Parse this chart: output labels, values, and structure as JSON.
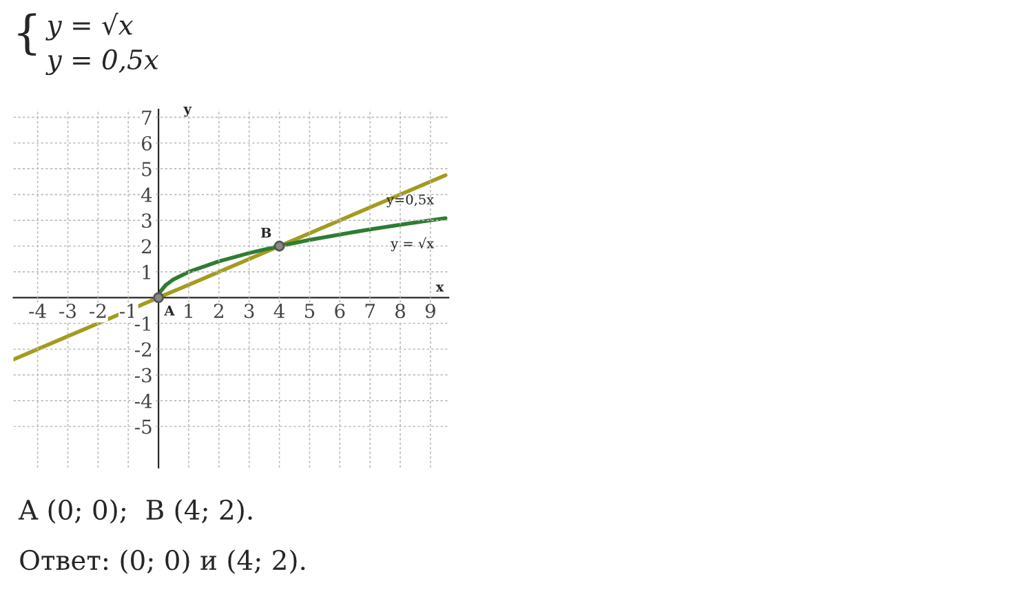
{
  "chart_data": {
    "type": "line",
    "xlabel": "x",
    "ylabel": "y",
    "annotations": [
      "{",
      "y = √x",
      "y = 0,5x",
      {
        "text": "A",
        "x": 0,
        "y": 0
      },
      {
        "text": "B",
        "x": 4,
        "y": 2
      },
      "A (0; 0);  B (4; 2).",
      "Ответ: (0; 0) и (4; 2)."
    ],
    "series": [
      {
        "name": "y=0,5x",
        "color": "#a39b1e",
        "x": [
          -4.8,
          9.5
        ],
        "values": [
          -2.4,
          4.75
        ]
      },
      {
        "name": "y = √x",
        "color": "#2e7d32",
        "x": [
          0,
          0.05,
          0.25,
          0.5,
          1,
          2,
          3,
          4,
          5,
          6,
          7,
          8,
          9,
          9.5
        ],
        "values": [
          0,
          0.22,
          0.5,
          0.71,
          1,
          1.41,
          1.73,
          2,
          2.24,
          2.45,
          2.65,
          2.83,
          3,
          3.08
        ]
      },
      {
        "type": "scatter",
        "color": "#888888",
        "x": [
          0,
          4
        ],
        "values": [
          0,
          2
        ],
        "marker": "circle"
      }
    ],
    "xlim": [
      -4.8,
      9.6
    ],
    "ylim": [
      -6.6,
      7.3
    ],
    "xticks": [
      -4,
      -3,
      -2,
      -1,
      1,
      2,
      3,
      4,
      5,
      6,
      7,
      8,
      9
    ],
    "yticks": [
      -5,
      -4,
      -3,
      -2,
      -1,
      1,
      2,
      3,
      4,
      5,
      6,
      7
    ],
    "grid": true
  }
}
